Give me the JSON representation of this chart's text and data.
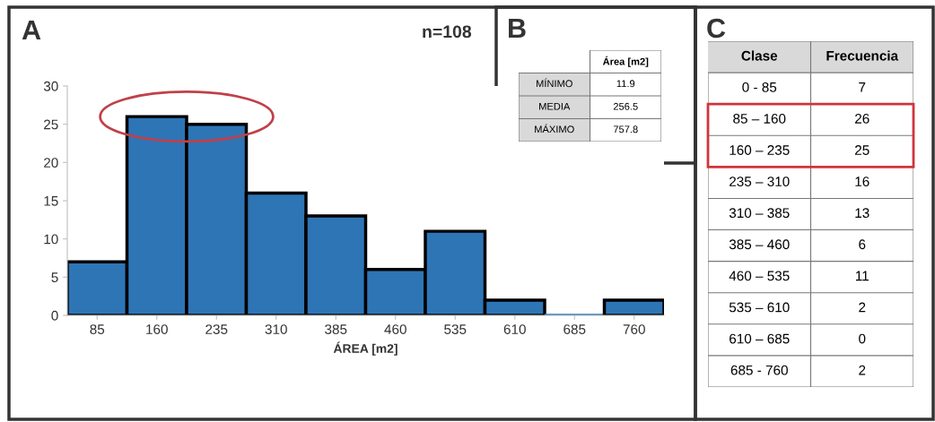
{
  "chart_data": [
    {
      "type": "bar",
      "title": "A",
      "annotations": [
        "n=108"
      ],
      "xlabel": "ÁREA [m2]",
      "categories": [
        "85",
        "160",
        "235",
        "310",
        "385",
        "460",
        "535",
        "610",
        "685",
        "760"
      ],
      "values": [
        7,
        26,
        25,
        16,
        13,
        6,
        11,
        2,
        0,
        2
      ],
      "color": "#2e75b6",
      "ylim": [
        0,
        30
      ],
      "yticks": [
        0,
        5,
        10,
        15,
        20,
        25,
        30
      ],
      "grid": false
    },
    {
      "type": "other",
      "title": "B",
      "ylabel": "Área [m2]",
      "categories": [
        "MÍNIMO",
        "MEDIA",
        "MÁXIMO"
      ],
      "values": [
        11.9,
        256.5,
        757.8
      ],
      "data_labels": true
    },
    {
      "type": "other",
      "title": "C",
      "xlabel": "Clase",
      "ylabel": "Frecuencia",
      "categories": [
        "0 - 85",
        "85 – 160",
        "160 – 235",
        "235 – 310",
        "310 – 385",
        "385 – 460",
        "460 – 535",
        "535 – 610",
        "610 – 685",
        "685 - 760"
      ],
      "values": [
        7,
        26,
        25,
        16,
        13,
        6,
        11,
        2,
        0,
        2
      ],
      "data_labels": true
    }
  ]
}
